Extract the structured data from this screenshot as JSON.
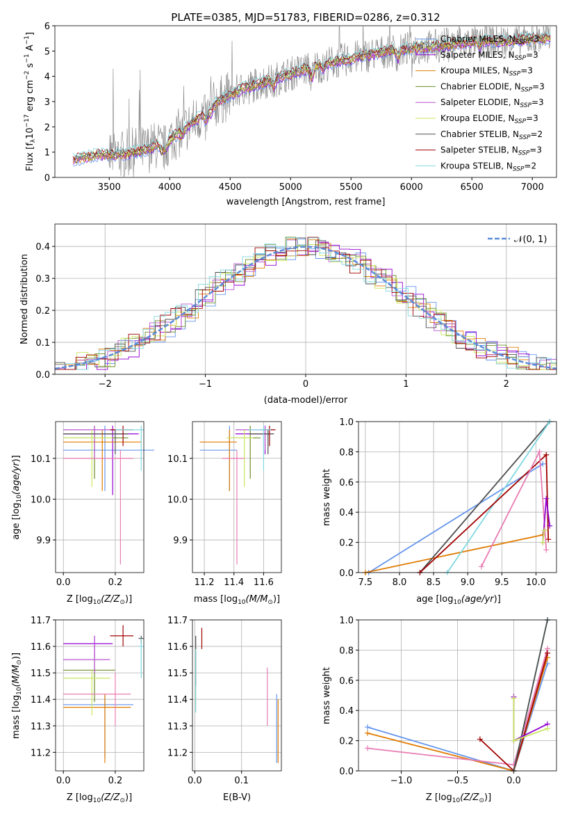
{
  "figure": {
    "title": "PLATE=0385, MJD=51783, FIBERID=0286, z=0.312"
  },
  "colors": {
    "chabrier_miles": "#6495ed",
    "salpeter_miles": "#9400d3",
    "kroupa_miles": "#e07b00",
    "chabrier_elodie": "#6b8e23",
    "salpeter_elodie": "#ba55d3",
    "kroupa_elodie": "#c8e65a",
    "chabrier_stelib": "#4d4d4d",
    "salpeter_stelib": "#a00000",
    "kroupa_stelib": "#80d8e0",
    "data": "#808080",
    "normal": "#5b8bd8",
    "pink": "#e87bb3"
  },
  "chart_data": [
    {
      "id": "spectrum",
      "type": "line",
      "title": "PLATE=0385, MJD=51783, FIBERID=0286, z=0.312",
      "xlabel": "wavelength [Angstrom, rest frame]",
      "ylabel": "Flux [f_λ 10^-17 erg cm^-2 s^-1 A^-1]",
      "xlim": [
        3050,
        7200
      ],
      "ylim": [
        0,
        6
      ],
      "xticks": [
        3500,
        4000,
        4500,
        5000,
        5500,
        6000,
        6500,
        7000
      ],
      "yticks": [
        0,
        1,
        2,
        3,
        4,
        5,
        6
      ],
      "grid": false,
      "legend_position": "top-right",
      "legend": [
        "Chabrier MILES, N_SSP=3",
        "Salpeter MILES, N_SSP=3",
        "Kroupa MILES, N_SSP=3",
        "Chabrier ELODIE, N_SSP=3",
        "Salpeter ELODIE, N_SSP=3",
        "Kroupa ELODIE, N_SSP=3",
        "Chabrier STELIB, N_SSP=2",
        "Salpeter STELIB, N_SSP=3",
        "Kroupa STELIB, N_SSP=2"
      ],
      "model_continuum": {
        "x": [
          3200,
          3400,
          3600,
          3800,
          4000,
          4200,
          4400,
          4600,
          4800,
          5000,
          5200,
          5400,
          5600,
          5800,
          6000,
          6200,
          6400,
          6600,
          6800,
          7000
        ],
        "y": [
          0.7,
          0.9,
          0.9,
          1.1,
          1.5,
          2.2,
          3.0,
          3.5,
          3.8,
          4.1,
          4.4,
          4.6,
          4.8,
          5.0,
          5.1,
          5.2,
          5.3,
          5.4,
          5.4,
          5.5
        ]
      }
    },
    {
      "id": "residuals",
      "type": "histogram",
      "xlabel": "(data-model)/error",
      "ylabel": "Normed distribution",
      "xlim": [
        -2.5,
        2.5
      ],
      "ylim": [
        0,
        0.47
      ],
      "xticks": [
        -2,
        -1,
        0,
        1,
        2
      ],
      "yticks": [
        0.0,
        0.1,
        0.2,
        0.3,
        0.4
      ],
      "grid": true,
      "legend_position": "top-right",
      "legend": [
        "𝒩(0, 1)"
      ]
    },
    {
      "id": "age_vs_Z",
      "type": "errorbar",
      "xlabel": "Z [log10(Z/Z⊙)]",
      "ylabel": "age [log10(age/yr)]",
      "xlim": [
        -0.03,
        0.31
      ],
      "ylim": [
        9.82,
        10.19
      ],
      "xticks": [
        0.0,
        0.2
      ],
      "yticks": [
        9.9,
        10.0,
        10.1
      ],
      "points": [
        {
          "x": 0.16,
          "y": 10.12,
          "xerr": [
            0.16,
            0.19
          ],
          "yerr": [
            0.1,
            0.06
          ],
          "color": "chabrier_miles"
        },
        {
          "x": 0.19,
          "y": 10.16,
          "xerr": [
            0.19,
            0.1
          ],
          "yerr": [
            0.15,
            0.02
          ],
          "color": "salpeter_miles"
        },
        {
          "x": 0.15,
          "y": 10.14,
          "xerr": [
            0.15,
            0.15
          ],
          "yerr": [
            0.12,
            0.03
          ],
          "color": "kroupa_miles"
        },
        {
          "x": 0.12,
          "y": 10.15,
          "xerr": [
            0.12,
            0.13
          ],
          "yerr": [
            0.1,
            0.03
          ],
          "color": "chabrier_elodie"
        },
        {
          "x": 0.12,
          "y": 10.17,
          "xerr": [
            0.12,
            0.09
          ],
          "yerr": [
            0.07,
            0.01
          ],
          "color": "salpeter_elodie"
        },
        {
          "x": 0.11,
          "y": 10.15,
          "xerr": [
            0.11,
            0.08
          ],
          "yerr": [
            0.12,
            0.02
          ],
          "color": "kroupa_elodie"
        },
        {
          "x": 0.2,
          "y": 10.16,
          "xerr": [
            0.2,
            0.05
          ],
          "yerr": [
            0.05,
            0.01
          ],
          "color": "chabrier_stelib"
        },
        {
          "x": 0.23,
          "y": 10.17,
          "xerr": [
            0.05,
            0.04
          ],
          "yerr": [
            0.04,
            0.01
          ],
          "color": "salpeter_stelib"
        },
        {
          "x": 0.3,
          "y": 10.17,
          "xerr": [
            0.1,
            0.01
          ],
          "yerr": [
            0.1,
            0.01
          ],
          "color": "kroupa_stelib"
        },
        {
          "x": 0.22,
          "y": 10.1,
          "xerr": [
            0.22,
            0.05
          ],
          "yerr": [
            0.26,
            0.02
          ],
          "color": "pink"
        }
      ]
    },
    {
      "id": "age_vs_mass",
      "type": "errorbar",
      "xlabel": "mass [log10(M/M⊙)]",
      "xlim": [
        11.12,
        11.72
      ],
      "ylim": [
        9.82,
        10.19
      ],
      "xticks": [
        11.2,
        11.4,
        11.6
      ],
      "yticks": [
        9.9,
        10.0,
        10.1
      ],
      "points": [
        {
          "x": 11.37,
          "y": 10.12,
          "xerr": [
            0.2,
            0.05
          ],
          "yerr": [
            0.1,
            0.06
          ],
          "color": "chabrier_miles"
        },
        {
          "x": 11.61,
          "y": 10.16,
          "xerr": [
            0.2,
            0.04
          ],
          "yerr": [
            0.05,
            0.02
          ],
          "color": "salpeter_miles"
        },
        {
          "x": 11.37,
          "y": 10.14,
          "xerr": [
            0.2,
            0.05
          ],
          "yerr": [
            0.12,
            0.03
          ],
          "color": "kroupa_miles"
        },
        {
          "x": 11.51,
          "y": 10.15,
          "xerr": [
            0.12,
            0.07
          ],
          "yerr": [
            0.1,
            0.03
          ],
          "color": "chabrier_elodie"
        },
        {
          "x": 11.61,
          "y": 10.17,
          "xerr": [
            0.2,
            0.05
          ],
          "yerr": [
            0.05,
            0.01
          ],
          "color": "salpeter_elodie"
        },
        {
          "x": 11.47,
          "y": 10.15,
          "xerr": [
            0.12,
            0.06
          ],
          "yerr": [
            0.12,
            0.02
          ],
          "color": "kroupa_elodie"
        },
        {
          "x": 11.63,
          "y": 10.16,
          "xerr": [
            0.12,
            0.04
          ],
          "yerr": [
            0.05,
            0.01
          ],
          "color": "chabrier_stelib"
        },
        {
          "x": 11.64,
          "y": 10.17,
          "xerr": [
            0.05,
            0.04
          ],
          "yerr": [
            0.04,
            0.01
          ],
          "color": "salpeter_stelib"
        },
        {
          "x": 11.6,
          "y": 10.17,
          "xerr": [
            0.1,
            0.05
          ],
          "yerr": [
            0.1,
            0.01
          ],
          "color": "kroupa_stelib"
        },
        {
          "x": 11.42,
          "y": 10.1,
          "xerr": [
            0.1,
            0.05
          ],
          "yerr": [
            0.26,
            0.02
          ],
          "color": "pink"
        }
      ]
    },
    {
      "id": "weight_vs_age",
      "type": "line",
      "xlabel": "age [log10(age/yr)]",
      "ylabel": "mass weight",
      "xlim": [
        7.4,
        10.3
      ],
      "ylim": [
        0,
        1
      ],
      "xticks": [
        7.5,
        8.0,
        8.5,
        9.0,
        9.5,
        10.0
      ],
      "yticks": [
        0.0,
        0.2,
        0.4,
        0.6,
        0.8,
        1.0
      ],
      "series": [
        {
          "color": "chabrier_miles",
          "x": [
            7.55,
            10.1
          ],
          "y": [
            0.0,
            0.72
          ]
        },
        {
          "color": "kroupa_miles",
          "x": [
            7.5,
            10.1
          ],
          "y": [
            0.0,
            0.25
          ]
        },
        {
          "color": "chabrier_stelib",
          "x": [
            8.3,
            10.2
          ],
          "y": [
            0.0,
            1.0
          ]
        },
        {
          "color": "kroupa_stelib",
          "x": [
            8.7,
            10.2
          ],
          "y": [
            0.0,
            1.0
          ]
        },
        {
          "color": "salpeter_stelib",
          "x": [
            8.3,
            10.15,
            10.18
          ],
          "y": [
            0.0,
            0.78,
            0.22
          ]
        },
        {
          "color": "pink",
          "x": [
            9.2,
            10.05,
            10.15
          ],
          "y": [
            0.04,
            0.8,
            0.15
          ]
        },
        {
          "color": "salpeter_miles",
          "x": [
            10.1,
            10.15,
            10.2
          ],
          "y": [
            0.2,
            0.49,
            0.31
          ]
        },
        {
          "color": "kroupa_elodie",
          "x": [
            10.1,
            10.12
          ],
          "y": [
            0.2,
            0.28
          ]
        }
      ]
    },
    {
      "id": "mass_vs_Z",
      "type": "errorbar",
      "xlabel": "Z [log10(Z/Z⊙)]",
      "ylabel": "mass [log10(M/M⊙)]",
      "xlim": [
        -0.03,
        0.31
      ],
      "ylim": [
        11.13,
        11.7
      ],
      "xticks": [
        0.0,
        0.2
      ],
      "yticks": [
        11.2,
        11.3,
        11.4,
        11.5,
        11.6,
        11.7
      ],
      "points": [
        {
          "x": 0.16,
          "y": 11.38,
          "xerr": [
            0.16,
            0.11
          ],
          "yerr": [
            0.2,
            0.04
          ],
          "color": "chabrier_miles"
        },
        {
          "x": 0.12,
          "y": 11.61,
          "xerr": [
            0.12,
            0.07
          ],
          "yerr": [
            0.05,
            0.03
          ],
          "color": "salpeter_miles"
        },
        {
          "x": 0.16,
          "y": 11.37,
          "xerr": [
            0.16,
            0.1
          ],
          "yerr": [
            0.21,
            0.05
          ],
          "color": "kroupa_miles"
        },
        {
          "x": 0.12,
          "y": 11.51,
          "xerr": [
            0.12,
            0.08
          ],
          "yerr": [
            0.12,
            0.06
          ],
          "color": "chabrier_elodie"
        },
        {
          "x": 0.12,
          "y": 11.55,
          "xerr": [
            0.12,
            0.06
          ],
          "yerr": [
            0.05,
            0.09
          ],
          "color": "salpeter_elodie"
        },
        {
          "x": 0.11,
          "y": 11.48,
          "xerr": [
            0.11,
            0.07
          ],
          "yerr": [
            0.14,
            0.03
          ],
          "color": "kroupa_elodie"
        },
        {
          "x": 0.3,
          "y": 11.63,
          "xerr": [
            0.01,
            0.01
          ],
          "yerr": [
            0.02,
            0.01
          ],
          "color": "chabrier_stelib"
        },
        {
          "x": 0.23,
          "y": 11.64,
          "xerr": [
            0.05,
            0.04
          ],
          "yerr": [
            0.04,
            0.04
          ],
          "color": "salpeter_stelib"
        },
        {
          "x": 0.3,
          "y": 11.6,
          "xerr": [
            0.01,
            0.01
          ],
          "yerr": [
            0.12,
            0.03
          ],
          "color": "kroupa_stelib"
        },
        {
          "x": 0.2,
          "y": 11.42,
          "xerr": [
            0.2,
            0.06
          ],
          "yerr": [
            0.12,
            0.08
          ],
          "color": "pink"
        }
      ]
    },
    {
      "id": "mass_vs_EBV",
      "type": "errorbar",
      "xlabel": "E(B-V)",
      "xlim": [
        -0.005,
        0.185
      ],
      "ylim": [
        11.13,
        11.7
      ],
      "xticks": [
        0.0,
        0.1
      ],
      "yticks": [
        11.2,
        11.3,
        11.4,
        11.5,
        11.6,
        11.7
      ],
      "points": [
        {
          "x": 0.002,
          "y": 11.5,
          "xerr": [
            0,
            0
          ],
          "yerr": [
            0.12,
            0.1
          ],
          "color": "kroupa_elodie"
        },
        {
          "x": 0.002,
          "y": 11.55,
          "xerr": [
            0,
            0
          ],
          "yerr": [
            0.1,
            0.09
          ],
          "color": "chabrier_stelib"
        },
        {
          "x": 0.002,
          "y": 11.47,
          "xerr": [
            0,
            0
          ],
          "yerr": [
            0.12,
            0.12
          ],
          "color": "kroupa_stelib"
        },
        {
          "x": 0.015,
          "y": 11.63,
          "xerr": [
            0,
            0
          ],
          "yerr": [
            0.04,
            0.04
          ],
          "color": "salpeter_stelib"
        },
        {
          "x": 0.155,
          "y": 11.42,
          "xerr": [
            0,
            0
          ],
          "yerr": [
            0.12,
            0.1
          ],
          "color": "pink"
        },
        {
          "x": 0.175,
          "y": 11.3,
          "xerr": [
            0,
            0
          ],
          "yerr": [
            0.14,
            0.12
          ],
          "color": "chabrier_miles"
        },
        {
          "x": 0.178,
          "y": 11.26,
          "xerr": [
            0,
            0
          ],
          "yerr": [
            0.1,
            0.14
          ],
          "color": "kroupa_miles"
        }
      ]
    },
    {
      "id": "weight_vs_Z",
      "type": "line",
      "xlabel": "Z [log10(Z/Z⊙)]",
      "ylabel": "mass weight",
      "xlim": [
        -1.38,
        0.38
      ],
      "ylim": [
        0,
        1
      ],
      "xticks": [
        -1.0,
        -0.5,
        0.0
      ],
      "yticks": [
        0.0,
        0.2,
        0.4,
        0.6,
        0.8,
        1.0
      ],
      "series": [
        {
          "color": "chabrier_miles",
          "x": [
            -1.3,
            0.0,
            0.3
          ],
          "y": [
            0.29,
            0.0,
            0.71
          ]
        },
        {
          "color": "kroupa_miles",
          "x": [
            -1.3,
            0.0,
            0.3
          ],
          "y": [
            0.25,
            0.0,
            0.75
          ]
        },
        {
          "color": "pink",
          "x": [
            -1.3,
            0.0,
            0.3
          ],
          "y": [
            0.15,
            0.04,
            0.81
          ]
        },
        {
          "color": "salpeter_stelib",
          "x": [
            -0.3,
            0.0,
            0.3
          ],
          "y": [
            0.21,
            0.0,
            0.78
          ]
        },
        {
          "color": "kroupa_stelib",
          "x": [
            0.0,
            0.3
          ],
          "y": [
            0.0,
            1.0
          ]
        },
        {
          "color": "chabrier_stelib",
          "x": [
            0.0,
            0.3
          ],
          "y": [
            0.0,
            1.0
          ]
        },
        {
          "color": "salpeter_miles",
          "x": [
            0.0,
            0.0,
            0.3
          ],
          "y": [
            0.49,
            0.2,
            0.31
          ]
        },
        {
          "color": "kroupa_elodie",
          "x": [
            0.0,
            0.0,
            0.3
          ],
          "y": [
            0.48,
            0.2,
            0.28
          ]
        }
      ]
    }
  ],
  "labels": {
    "p1_xlabel": "wavelength [Angstrom, rest frame]",
    "p2_xlabel": "(data-model)/error",
    "p2_ylabel": "Normed distribution",
    "p2_legend": "𝒩(0, 1)",
    "mass_weight": "mass weight",
    "age_axis": "age  [log",
    "mass_axis": "mass [log",
    "z_axis": "Z [log",
    "ebv": "E(B-V)"
  }
}
